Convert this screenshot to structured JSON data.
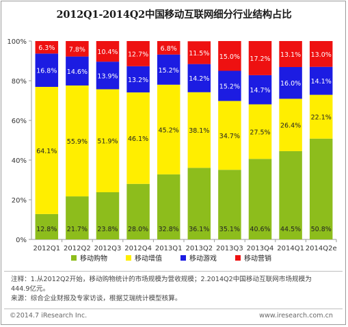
{
  "title": "2012Q1-2014Q2中国移动互联网细分行业结构占比",
  "notes": {
    "line1": "注释：1.从2012Q2开始，移动购物统计的市场规模为营收规模；2.2014Q2中国移动互联网市场规模为",
    "line2": "444.9亿元。",
    "line3": "来源：综合企业财报及专家访谈，根据艾瑞统计模型核算。"
  },
  "footer": {
    "left": "©2014.7 iResearch Inc.",
    "right": "www.iresearch.com.cn"
  },
  "chart_data": {
    "type": "bar",
    "stacked": true,
    "title": "2012Q1-2014Q2中国移动互联网细分行业结构占比",
    "categories": [
      "2012Q1",
      "2012Q2",
      "2012Q3",
      "2012Q4",
      "2013Q1",
      "2013Q2",
      "2013Q3",
      "2013Q4",
      "2014Q1",
      "2014Q2e"
    ],
    "series": [
      {
        "name": "移动购物",
        "color": "#8dbd1c",
        "values": [
          12.8,
          21.7,
          23.8,
          28.0,
          32.8,
          36.1,
          35.1,
          40.6,
          44.5,
          50.8
        ]
      },
      {
        "name": "移动增值",
        "color": "#ffee00",
        "values": [
          64.1,
          55.9,
          51.9,
          46.1,
          45.2,
          38.1,
          34.7,
          27.5,
          26.4,
          22.1
        ]
      },
      {
        "name": "移动游戏",
        "color": "#1c1ce2",
        "values": [
          16.8,
          14.6,
          13.9,
          13.2,
          15.2,
          14.2,
          15.2,
          14.7,
          16.0,
          14.1
        ]
      },
      {
        "name": "移动营销",
        "color": "#ee1111",
        "values": [
          6.3,
          7.8,
          10.4,
          12.7,
          6.8,
          11.5,
          15.0,
          17.2,
          13.1,
          13.0
        ]
      }
    ],
    "ylim": [
      0,
      100
    ],
    "yticks": [
      "0%",
      "20%",
      "40%",
      "60%",
      "80%",
      "100%"
    ],
    "grid": true,
    "legend_position": "bottom"
  }
}
